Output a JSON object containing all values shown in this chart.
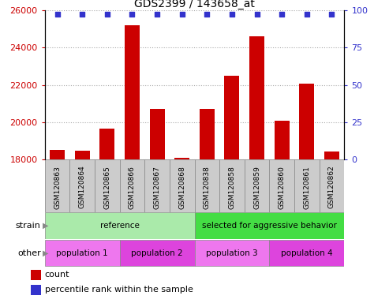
{
  "title": "GDS2399 / 143658_at",
  "samples": [
    "GSM120863",
    "GSM120864",
    "GSM120865",
    "GSM120866",
    "GSM120867",
    "GSM120868",
    "GSM120838",
    "GSM120858",
    "GSM120859",
    "GSM120860",
    "GSM120861",
    "GSM120862"
  ],
  "counts": [
    18500,
    18450,
    19650,
    25200,
    20700,
    18050,
    20700,
    22500,
    24600,
    20050,
    22050,
    18400
  ],
  "ylim_left": [
    18000,
    26000
  ],
  "ylim_right": [
    0,
    100
  ],
  "yticks_left": [
    18000,
    20000,
    22000,
    24000,
    26000
  ],
  "yticks_right": [
    0,
    25,
    50,
    75,
    100
  ],
  "bar_color": "#cc0000",
  "dot_color": "#3333cc",
  "strain_groups": [
    {
      "label": "reference",
      "start": 0,
      "end": 6,
      "color": "#aaeaaa"
    },
    {
      "label": "selected for aggressive behavior",
      "start": 6,
      "end": 12,
      "color": "#44dd44"
    }
  ],
  "other_groups": [
    {
      "label": "population 1",
      "start": 0,
      "end": 3,
      "color": "#ee77ee"
    },
    {
      "label": "population 2",
      "start": 3,
      "end": 6,
      "color": "#dd44dd"
    },
    {
      "label": "population 3",
      "start": 6,
      "end": 9,
      "color": "#ee77ee"
    },
    {
      "label": "population 4",
      "start": 9,
      "end": 12,
      "color": "#dd44dd"
    }
  ],
  "xticklabel_bg": "#cccccc",
  "legend_count_color": "#cc0000",
  "legend_pct_color": "#3333cc",
  "grid_color": "#aaaaaa",
  "grid_style": "dotted"
}
